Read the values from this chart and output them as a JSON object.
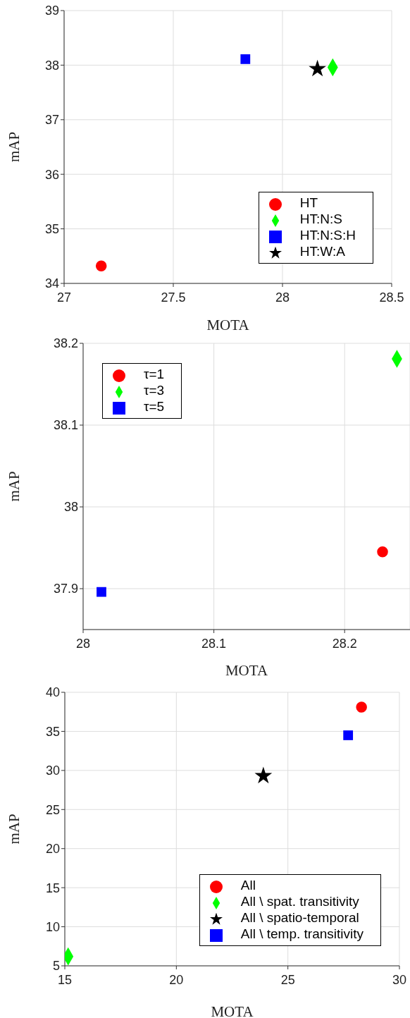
{
  "chart_data": [
    {
      "type": "scatter",
      "xlabel": "MOTA",
      "ylabel": "mAP",
      "xlim": [
        27,
        28.5
      ],
      "xticks": [
        27,
        27.5,
        28,
        28.5
      ],
      "ylim": [
        34,
        39
      ],
      "yticks": [
        34,
        35,
        36,
        37,
        38,
        39
      ],
      "grid": true,
      "legend": "bottom right",
      "series": [
        {
          "name": "HT",
          "color": "#ff0000",
          "marker": "circle",
          "x": [
            27.17
          ],
          "values": [
            34.32
          ]
        },
        {
          "name": "HT:N:S",
          "color": "#00ff00",
          "marker": "diamond",
          "x": [
            28.23
          ],
          "values": [
            37.96
          ]
        },
        {
          "name": "HT:N:S:H",
          "color": "#0000ff",
          "marker": "square",
          "x": [
            27.83
          ],
          "values": [
            38.11
          ]
        },
        {
          "name": "HT:W:A",
          "color": "#000000",
          "marker": "star",
          "x": [
            28.16
          ],
          "values": [
            37.93
          ]
        }
      ]
    },
    {
      "type": "scatter",
      "xlabel": "MOTA",
      "ylabel": "mAP",
      "xlim": [
        28,
        28.25
      ],
      "xticks": [
        28,
        28.1,
        28.2
      ],
      "ylim": [
        37.85,
        38.2
      ],
      "yticks": [
        37.9,
        38,
        38.1,
        38.2
      ],
      "grid": true,
      "legend": "top left",
      "series": [
        {
          "name": "τ=1",
          "color": "#ff0000",
          "marker": "circle",
          "x": [
            28.229
          ],
          "values": [
            37.945
          ]
        },
        {
          "name": "τ=3",
          "color": "#00ff00",
          "marker": "diamond",
          "x": [
            28.24
          ],
          "values": [
            38.181
          ]
        },
        {
          "name": "τ=5",
          "color": "#0000ff",
          "marker": "square",
          "x": [
            28.014
          ],
          "values": [
            37.896
          ]
        }
      ]
    },
    {
      "type": "scatter",
      "xlabel": "MOTA",
      "ylabel": "mAP",
      "xlim": [
        15,
        30
      ],
      "xticks": [
        15,
        20,
        25,
        30
      ],
      "ylim": [
        5,
        40
      ],
      "yticks": [
        5,
        10,
        15,
        20,
        25,
        30,
        35,
        40
      ],
      "grid": true,
      "legend": "bottom right",
      "series": [
        {
          "name": "All",
          "color": "#ff0000",
          "marker": "circle",
          "x": [
            28.3
          ],
          "values": [
            38.1
          ]
        },
        {
          "name": "All \\ spat. transitivity",
          "color": "#00ff00",
          "marker": "diamond",
          "x": [
            15.15
          ],
          "values": [
            6.2
          ]
        },
        {
          "name": "All \\ temp. transitivity",
          "color": "#0000ff",
          "marker": "square",
          "x": [
            27.7
          ],
          "values": [
            34.5
          ]
        },
        {
          "name": "All \\ spatio-temporal",
          "color": "#000000",
          "marker": "star",
          "x": [
            23.9
          ],
          "values": [
            29.3
          ]
        }
      ]
    }
  ]
}
